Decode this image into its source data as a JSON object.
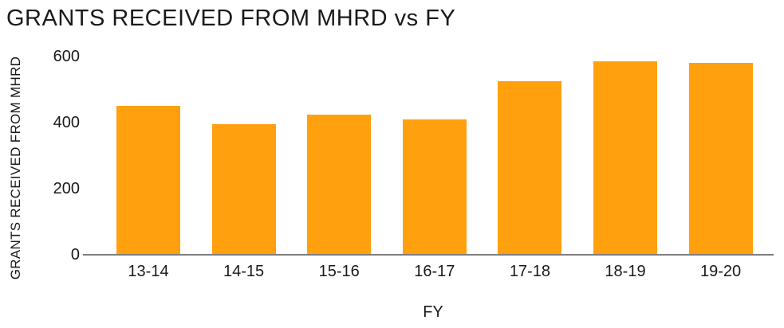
{
  "chart_data": {
    "type": "bar",
    "title": "GRANTS RECEIVED FROM MHRD vs FY",
    "xlabel": "FY",
    "ylabel": "GRANTS RECEIVED FROM MHRD",
    "categories": [
      "13-14",
      "14-15",
      "15-16",
      "16-17",
      "17-18",
      "18-19",
      "19-20"
    ],
    "values": [
      450,
      395,
      425,
      410,
      525,
      585,
      580
    ],
    "yticks": [
      0,
      200,
      400,
      600
    ],
    "ylim": [
      0,
      600
    ],
    "grid": false,
    "legend": false,
    "bar_color": "#FFA00F",
    "axis_line_color": "#7F7F7F",
    "text_color": "#1A1A1A"
  }
}
